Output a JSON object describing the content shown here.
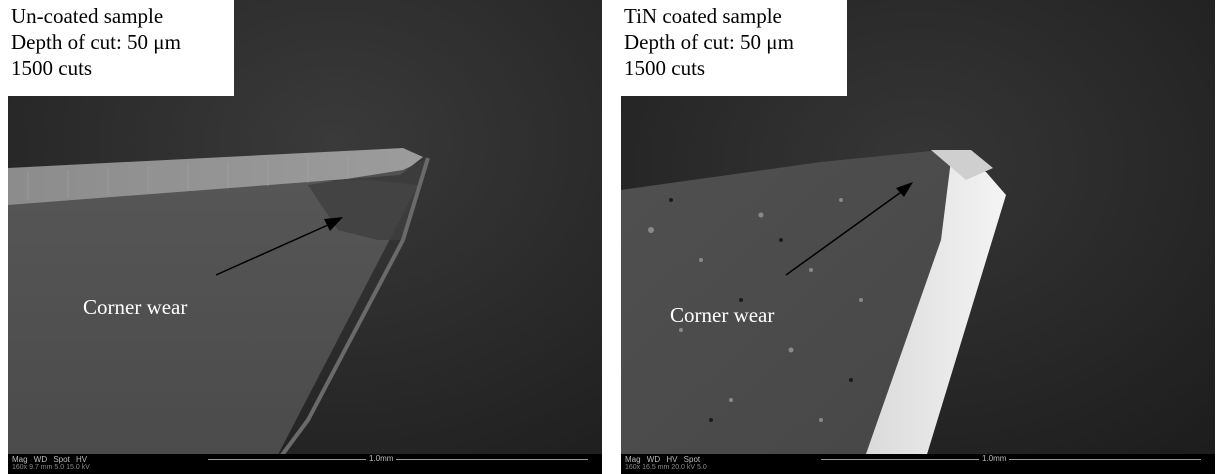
{
  "panels": {
    "left": {
      "caption_lines": [
        "Un-coated sample",
        "Depth of cut: 50 μm",
        "1500 cuts"
      ],
      "annotation": "Corner wear",
      "databar": {
        "labels": "Mag WD Spot HV",
        "values": "160x 9.7 mm 5.0 15.0 kV",
        "scale": "1.0mm"
      }
    },
    "right": {
      "caption_lines": [
        "TiN coated sample",
        "Depth of cut: 50 μm",
        "1500 cuts"
      ],
      "annotation": "Corner wear",
      "databar": {
        "labels": "Mag WD HV Spot",
        "values": "160x 16.5 mm 20.0 kV 5.0",
        "scale": "1.0mm"
      }
    }
  },
  "colors": {
    "background": "#2a2a2a",
    "caption_background": "#ffffff",
    "annotation_text": "#ffffff"
  }
}
